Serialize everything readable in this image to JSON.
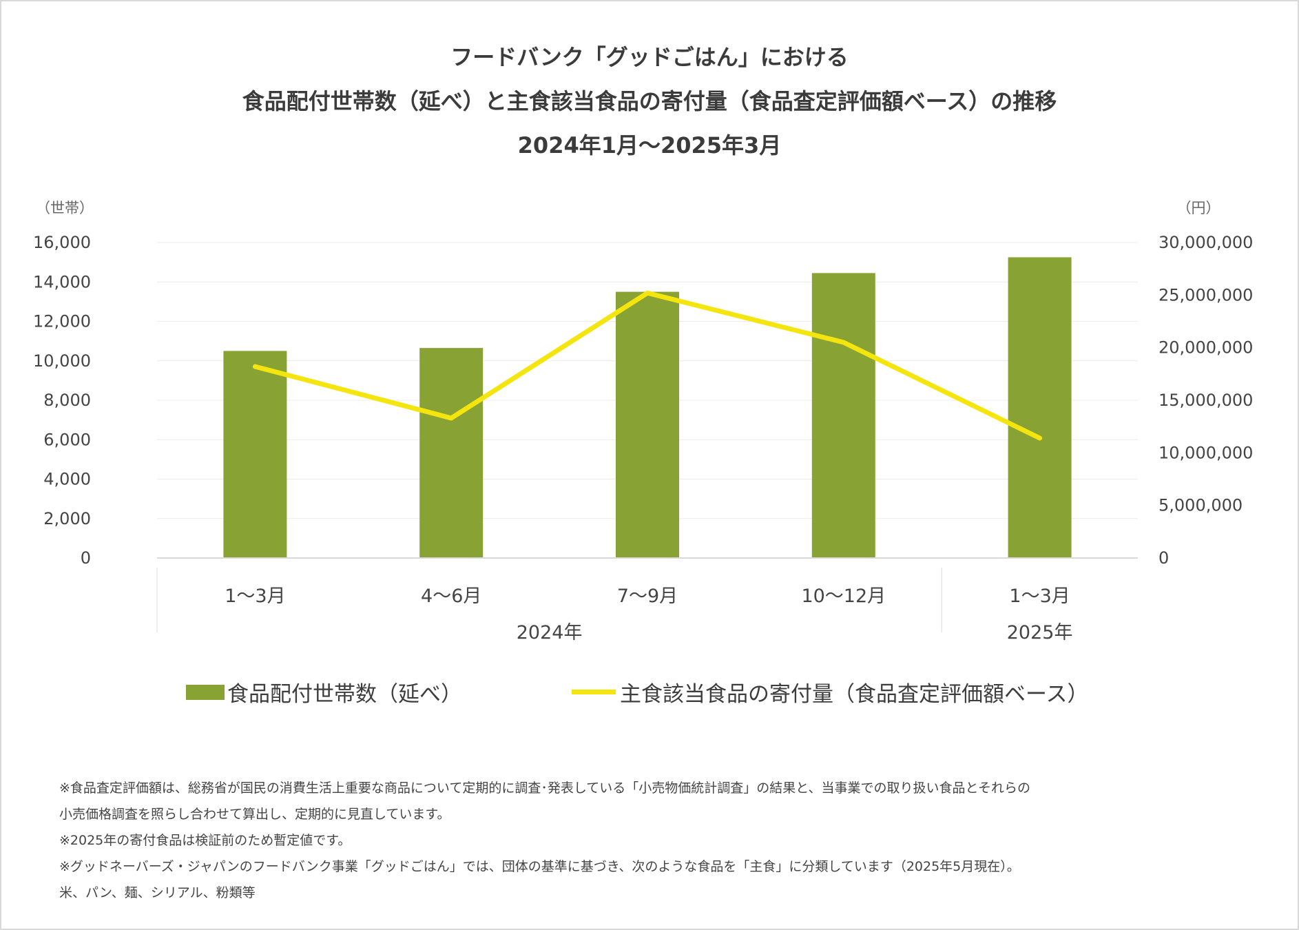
{
  "title": {
    "line1": "フードバンク「グッドごはん」における",
    "line2": "食品配付世帯数（延べ）と主食該当食品の寄付量（食品査定評価額ベース）の推移",
    "line3": "2024年1月〜2025年3月"
  },
  "chart_data": {
    "type": "bar+line",
    "categories": [
      "1〜3月",
      "4〜6月",
      "7〜9月",
      "10〜12月",
      "1〜3月"
    ],
    "year_groups": [
      {
        "label": "2024年",
        "span": [
          0,
          3
        ]
      },
      {
        "label": "2025年",
        "span": [
          4,
          4
        ]
      }
    ],
    "left_axis": {
      "unit": "（世帯）",
      "ylim": [
        0,
        16000
      ],
      "ticks": [
        0,
        2000,
        4000,
        6000,
        8000,
        10000,
        12000,
        14000,
        16000
      ],
      "tick_labels": [
        "0",
        "2,000",
        "4,000",
        "6,000",
        "8,000",
        "10,000",
        "12,000",
        "14,000",
        "16,000"
      ]
    },
    "right_axis": {
      "unit": "（円）",
      "ylim": [
        0,
        30000000
      ],
      "ticks": [
        0,
        5000000,
        10000000,
        15000000,
        20000000,
        25000000,
        30000000
      ],
      "tick_labels": [
        "0",
        "5,000,000",
        "10,000,000",
        "15,000,000",
        "20,000,000",
        "25,000,000",
        "30,000,000"
      ]
    },
    "series": [
      {
        "name": "食品配付世帯数（延べ）",
        "type": "bar",
        "axis": "left",
        "color": "#88a334",
        "values": [
          10500,
          10650,
          13500,
          14450,
          15250
        ]
      },
      {
        "name": "主食該当食品の寄付量（食品査定評価額ベース）",
        "type": "line",
        "axis": "right",
        "color": "#f5e50f",
        "values": [
          18200000,
          13300000,
          25200000,
          20500000,
          11400000
        ]
      }
    ],
    "grid": true
  },
  "legend": {
    "bar_label": "食品配付世帯数（延べ）",
    "line_label": "主食該当食品の寄付量（食品査定評価額ベース）"
  },
  "notes": [
    "※食品査定評価額は、総務省が国民の消費生活上重要な商品について定期的に調査･発表している「小売物価統計調査」の結果と、当事業での取り扱い食品とそれらの",
    "小売価格調査を照らし合わせて算出し、定期的に見直しています。",
    "※2025年の寄付食品は検証前のため暫定値です。",
    "※グッドネーバーズ・ジャパンのフードバンク事業「グッドごはん」では、団体の基準に基づき、次のような食品を「主食」に分類しています（2025年5月現在）。",
    "米、パン、麺、シリアル、粉類等"
  ]
}
